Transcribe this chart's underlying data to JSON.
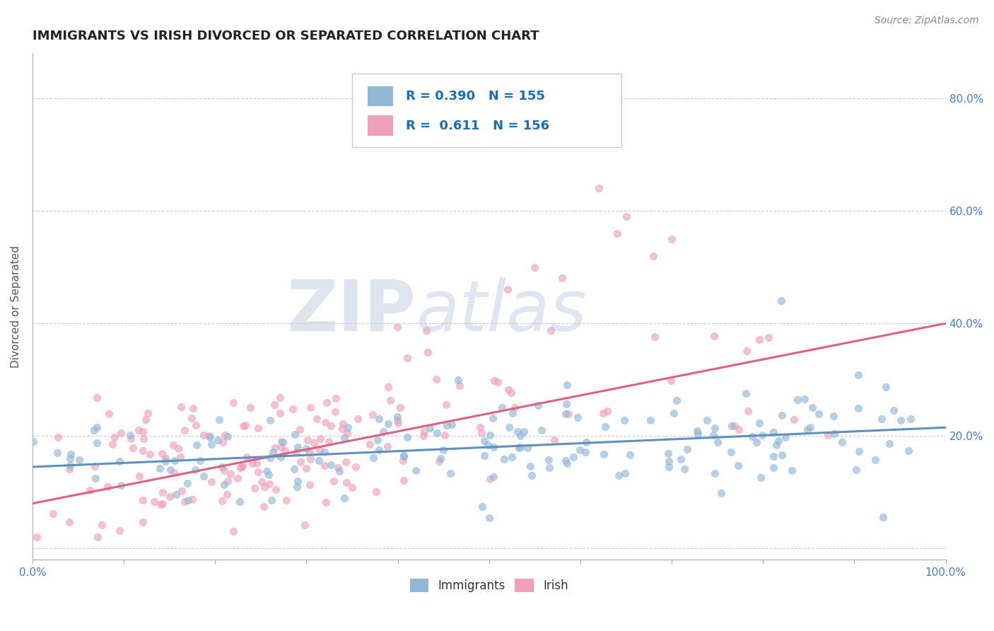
{
  "title": "IMMIGRANTS VS IRISH DIVORCED OR SEPARATED CORRELATION CHART",
  "source_text": "Source: ZipAtlas.com",
  "ylabel": "Divorced or Separated",
  "xlim": [
    0.0,
    1.0
  ],
  "ylim": [
    -0.02,
    0.88
  ],
  "x_ticks": [
    0.0,
    0.1,
    0.2,
    0.3,
    0.4,
    0.5,
    0.6,
    0.7,
    0.8,
    0.9,
    1.0
  ],
  "y_ticks": [
    0.0,
    0.2,
    0.4,
    0.6,
    0.8
  ],
  "R_immigrants": 0.39,
  "N_immigrants": 155,
  "R_irish": 0.611,
  "N_irish": 156,
  "color_immigrants": "#92b8d8",
  "color_irish": "#f0a0b8",
  "line_color_immigrants": "#6090c0",
  "line_color_irish": "#e06080",
  "marker_size": 55,
  "marker_alpha": 0.65,
  "background_color": "#ffffff",
  "grid_color": "#cccccc",
  "watermark_zip_color": "#c5cfe0",
  "watermark_atlas_color": "#b8c8e0",
  "title_fontsize": 13,
  "axis_label_fontsize": 11,
  "tick_fontsize": 11,
  "legend_fontsize": 13,
  "source_fontsize": 10,
  "legend_text_color": "#1a6faf",
  "tick_color": "#4a7fbf",
  "ylabel_color": "#555555"
}
